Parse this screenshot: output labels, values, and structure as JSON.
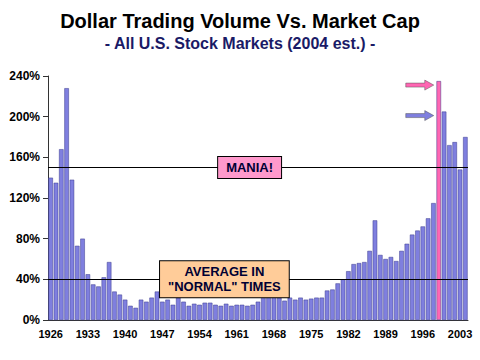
{
  "chart_data": {
    "type": "bar",
    "title": "Dollar Trading Volume Vs. Market Cap",
    "subtitle": "- All U.S. Stock Markets (2004 est.) -",
    "categories": [
      "1926",
      null,
      null,
      null,
      null,
      null,
      null,
      "1933",
      null,
      null,
      null,
      null,
      null,
      null,
      "1940",
      null,
      null,
      null,
      null,
      null,
      null,
      "1947",
      null,
      null,
      null,
      null,
      null,
      null,
      "1954",
      null,
      null,
      null,
      null,
      null,
      null,
      "1961",
      null,
      null,
      null,
      null,
      null,
      null,
      "1968",
      null,
      null,
      null,
      null,
      null,
      null,
      "1975",
      null,
      null,
      null,
      null,
      null,
      null,
      "1982",
      null,
      null,
      null,
      null,
      null,
      null,
      "1989",
      null,
      null,
      null,
      null,
      null,
      null,
      "1996",
      null,
      null,
      null,
      null,
      null,
      null,
      "2003",
      null
    ],
    "values": [
      140,
      135,
      168,
      228,
      138,
      73,
      80,
      45,
      35,
      33,
      42,
      57,
      28,
      25,
      20,
      14,
      12,
      20,
      18,
      22,
      28,
      18,
      20,
      15,
      22,
      18,
      14,
      16,
      15,
      17,
      17,
      15,
      14,
      16,
      14,
      15,
      15,
      14,
      15,
      18,
      23,
      25,
      25,
      22,
      19,
      22,
      20,
      22,
      20,
      21,
      22,
      22,
      29,
      30,
      36,
      40,
      48,
      55,
      56,
      57,
      68,
      98,
      64,
      60,
      62,
      58,
      68,
      75,
      84,
      88,
      92,
      100,
      115,
      235,
      205,
      172,
      175,
      148,
      180
    ],
    "color": "#7f7fdf",
    "colors": [
      "#7f7fdf",
      "#7f7fdf",
      "#7f7fdf",
      "#7f7fdf",
      "#7f7fdf",
      "#7f7fdf",
      "#7f7fdf",
      "#7f7fdf",
      "#7f7fdf",
      "#7f7fdf",
      "#7f7fdf",
      "#7f7fdf",
      "#7f7fdf",
      "#7f7fdf",
      "#7f7fdf",
      "#7f7fdf",
      "#7f7fdf",
      "#7f7fdf",
      "#7f7fdf",
      "#7f7fdf",
      "#7f7fdf",
      "#7f7fdf",
      "#7f7fdf",
      "#7f7fdf",
      "#7f7fdf",
      "#7f7fdf",
      "#7f7fdf",
      "#7f7fdf",
      "#7f7fdf",
      "#7f7fdf",
      "#7f7fdf",
      "#7f7fdf",
      "#7f7fdf",
      "#7f7fdf",
      "#7f7fdf",
      "#7f7fdf",
      "#7f7fdf",
      "#7f7fdf",
      "#7f7fdf",
      "#7f7fdf",
      "#7f7fdf",
      "#7f7fdf",
      "#7f7fdf",
      "#7f7fdf",
      "#7f7fdf",
      "#7f7fdf",
      "#7f7fdf",
      "#7f7fdf",
      "#7f7fdf",
      "#7f7fdf",
      "#7f7fdf",
      "#7f7fdf",
      "#7f7fdf",
      "#7f7fdf",
      "#7f7fdf",
      "#7f7fdf",
      "#7f7fdf",
      "#7f7fdf",
      "#7f7fdf",
      "#7f7fdf",
      "#7f7fdf",
      "#7f7fdf",
      "#7f7fdf",
      "#7f7fdf",
      "#7f7fdf",
      "#7f7fdf",
      "#7f7fdf",
      "#7f7fdf",
      "#7f7fdf",
      "#7f7fdf",
      "#7f7fdf",
      "#7f7fdf",
      "#7f7fdf",
      "#ff66b3",
      "#7f7fdf",
      "#7f7fdf",
      "#7f7fdf",
      "#7f7fdf",
      "#7f7fdf"
    ],
    "ylim": [
      0,
      240
    ],
    "yticks": [
      {
        "value": 0,
        "label": "0%"
      },
      {
        "value": 40,
        "label": "40%"
      },
      {
        "value": 80,
        "label": "80%"
      },
      {
        "value": 120,
        "label": "120%"
      },
      {
        "value": 160,
        "label": "160%"
      },
      {
        "value": 200,
        "label": "200%"
      },
      {
        "value": 240,
        "label": "240%"
      }
    ],
    "grid": false,
    "reference_lines": [
      {
        "value": 150,
        "label": "MANIA!",
        "color": "#ff99cc"
      },
      {
        "value": 40,
        "label": "AVERAGE IN\n\"NORMAL\" TIMES",
        "color": "#ffcc99"
      }
    ]
  }
}
